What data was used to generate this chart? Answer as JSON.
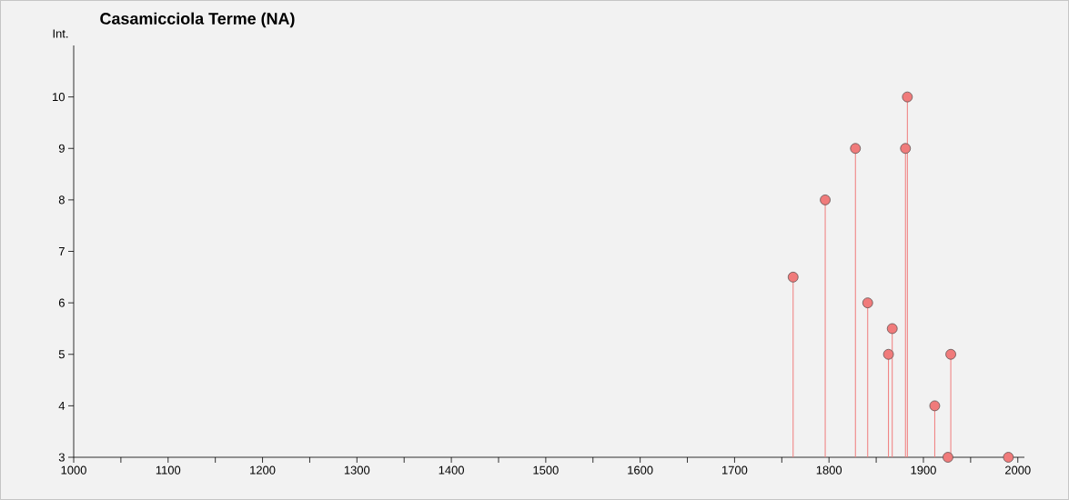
{
  "chart_data": {
    "type": "lollipop",
    "title": "Casamicciola Terme (NA)",
    "ylabel": "Int.",
    "x": [
      1762,
      1796,
      1828,
      1841,
      1863,
      1867,
      1881,
      1883,
      1912,
      1926,
      1929,
      1990
    ],
    "values": [
      6.5,
      8,
      9,
      6,
      5,
      5.5,
      9,
      10,
      4,
      3,
      5,
      3
    ],
    "color": "#f07b7b",
    "marker": "circle",
    "xlim": [
      1000,
      2007
    ],
    "ylim": [
      3,
      11
    ],
    "xticks": [
      1000,
      {
        "value": 1050,
        "label": null
      },
      1100,
      {
        "value": 1150,
        "label": null
      },
      1200,
      {
        "value": 1250,
        "label": null
      },
      1300,
      {
        "value": 1350,
        "label": null
      },
      1400,
      {
        "value": 1450,
        "label": null
      },
      1500,
      {
        "value": 1550,
        "label": null
      },
      1600,
      {
        "value": 1650,
        "label": null
      },
      1700,
      {
        "value": 1750,
        "label": null
      },
      1800,
      {
        "value": 1850,
        "label": null
      },
      1900,
      {
        "value": 1950,
        "label": null
      },
      2000
    ],
    "yticks": [
      3,
      4,
      5,
      6,
      7,
      8,
      9,
      10
    ]
  }
}
